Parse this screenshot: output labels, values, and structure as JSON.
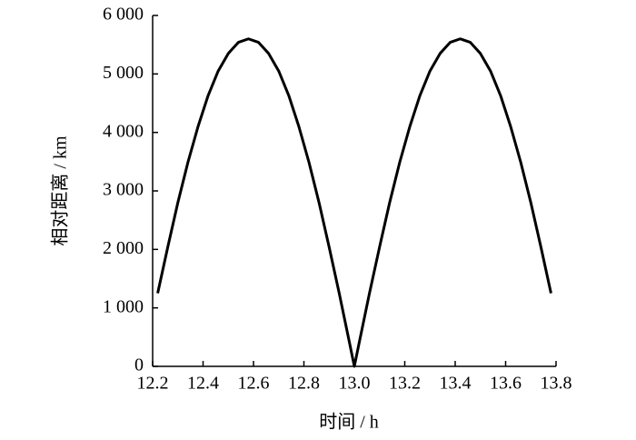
{
  "chart_data": {
    "type": "line",
    "xlabel": "时间 / h",
    "ylabel": "相对距离 / km",
    "x": [
      12.22,
      12.26,
      12.3,
      12.34,
      12.38,
      12.42,
      12.46,
      12.5,
      12.54,
      12.58,
      12.62,
      12.66,
      12.7,
      12.74,
      12.78,
      12.82,
      12.86,
      12.9,
      12.94,
      12.98,
      13.0,
      13.02,
      13.06,
      13.1,
      13.14,
      13.18,
      13.22,
      13.26,
      13.3,
      13.34,
      13.38,
      13.42,
      13.46,
      13.5,
      13.54,
      13.58,
      13.62,
      13.66,
      13.7,
      13.74,
      13.78
    ],
    "series": [
      {
        "color": "#000000",
        "values": [
          1250,
          2040,
          2800,
          3490,
          4100,
          4630,
          5050,
          5350,
          5540,
          5600,
          5540,
          5350,
          5050,
          4630,
          4100,
          3490,
          2800,
          2040,
          1250,
          420,
          0,
          420,
          1250,
          2040,
          2800,
          3490,
          4100,
          4630,
          5050,
          5350,
          5540,
          5600,
          5540,
          5350,
          5050,
          4630,
          4100,
          3490,
          2800,
          2040,
          1250
        ]
      }
    ],
    "xlim": [
      12.2,
      13.8
    ],
    "xticks": [
      12.2,
      12.4,
      12.6,
      12.8,
      {
        "value": 13,
        "label": "13.0"
      },
      13.2,
      13.4,
      13.6,
      13.8
    ],
    "ylim": [
      0,
      6000
    ],
    "yticks": [
      0,
      {
        "value": 1000,
        "label": "1 000"
      },
      {
        "value": 2000,
        "label": "2 000"
      },
      {
        "value": 3000,
        "label": "3 000"
      },
      {
        "value": 4000,
        "label": "4 000"
      },
      {
        "value": 5000,
        "label": "5 000"
      },
      {
        "value": 6000,
        "label": "6 000"
      }
    ],
    "grid": false
  }
}
